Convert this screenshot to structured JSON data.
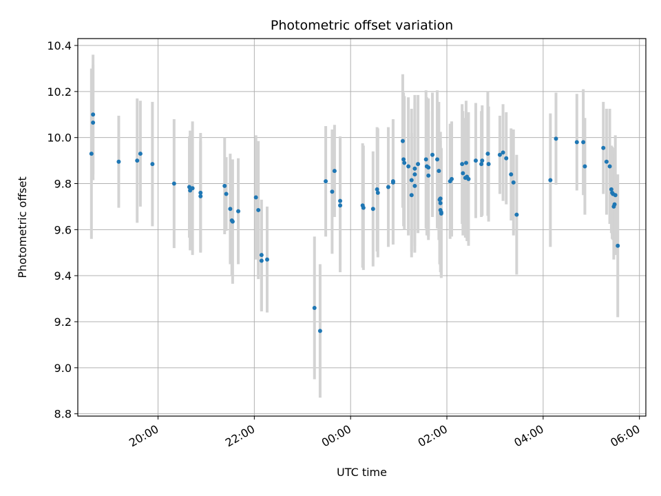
{
  "chart_data": {
    "type": "scatter",
    "title": "Photometric offset variation",
    "xlabel": "UTC time",
    "ylabel": "Photometric offset",
    "x_unit": "UTC time (start 18:00)",
    "xlim": [
      "18:20",
      "06:08"
    ],
    "ylim": [
      8.79,
      10.43
    ],
    "x_ticks": [
      "20:00",
      "22:00",
      "00:00",
      "02:00",
      "04:00",
      "06:00"
    ],
    "y_ticks": [
      "8.8",
      "9.0",
      "9.2",
      "9.4",
      "9.6",
      "9.8",
      "10.0",
      "10.2",
      "10.4"
    ],
    "grid": true,
    "colors": {
      "point": "#1f77b4",
      "errorbar": "#d3d3d3",
      "grid": "#b0b0b0"
    },
    "series": [
      {
        "points": [
          {
            "t": "18:37",
            "y": 9.93,
            "err": 0.37
          },
          {
            "t": "18:39",
            "y": 10.1,
            "err": 0.26
          },
          {
            "t": "18:39",
            "y": 10.065,
            "err": 0.25
          },
          {
            "t": "19:11",
            "y": 9.895,
            "err": 0.2
          },
          {
            "t": "19:34",
            "y": 9.9,
            "err": 0.27
          },
          {
            "t": "19:38",
            "y": 9.93,
            "err": 0.23
          },
          {
            "t": "19:53",
            "y": 9.885,
            "err": 0.27
          },
          {
            "t": "20:20",
            "y": 9.8,
            "err": 0.28
          },
          {
            "t": "20:39",
            "y": 9.785,
            "err": 0.22
          },
          {
            "t": "20:40",
            "y": 9.77,
            "err": 0.26
          },
          {
            "t": "20:43",
            "y": 9.78,
            "err": 0.29
          },
          {
            "t": "20:53",
            "y": 9.76,
            "err": 0.26
          },
          {
            "t": "20:53",
            "y": 9.745,
            "err": 0.24
          },
          {
            "t": "21:23",
            "y": 9.79,
            "err": 0.21
          },
          {
            "t": "21:25",
            "y": 9.755,
            "err": 0.16
          },
          {
            "t": "21:30",
            "y": 9.69,
            "err": 0.24
          },
          {
            "t": "21:32",
            "y": 9.64,
            "err": 0.24
          },
          {
            "t": "21:33",
            "y": 9.635,
            "err": 0.27
          },
          {
            "t": "21:40",
            "y": 9.68,
            "err": 0.23
          },
          {
            "t": "22:02",
            "y": 9.74,
            "err": 0.27
          },
          {
            "t": "22:05",
            "y": 9.685,
            "err": 0.3
          },
          {
            "t": "22:09",
            "y": 9.49,
            "err": 0.24
          },
          {
            "t": "22:09",
            "y": 9.465,
            "err": 0.22
          },
          {
            "t": "22:16",
            "y": 9.47,
            "err": 0.23
          },
          {
            "t": "23:15",
            "y": 9.26,
            "err": 0.31
          },
          {
            "t": "23:22",
            "y": 9.16,
            "err": 0.29
          },
          {
            "t": "23:29",
            "y": 9.81,
            "err": 0.24
          },
          {
            "t": "23:37",
            "y": 9.765,
            "err": 0.27
          },
          {
            "t": "23:40",
            "y": 9.855,
            "err": 0.2
          },
          {
            "t": "23:47",
            "y": 9.725,
            "err": 0.28
          },
          {
            "t": "23:47",
            "y": 9.705,
            "err": 0.29
          },
          {
            "t": "00:15",
            "y": 9.705,
            "err": 0.27
          },
          {
            "t": "00:16",
            "y": 9.695,
            "err": 0.27
          },
          {
            "t": "00:28",
            "y": 9.69,
            "err": 0.25
          },
          {
            "t": "00:33",
            "y": 9.775,
            "err": 0.27
          },
          {
            "t": "00:34",
            "y": 9.76,
            "err": 0.28
          },
          {
            "t": "00:47",
            "y": 9.785,
            "err": 0.26
          },
          {
            "t": "00:53",
            "y": 9.805,
            "err": 0.27
          },
          {
            "t": "00:53",
            "y": 9.81,
            "err": 0.27
          },
          {
            "t": "01:05",
            "y": 9.985,
            "err": 0.29
          },
          {
            "t": "01:06",
            "y": 9.905,
            "err": 0.29
          },
          {
            "t": "01:07",
            "y": 9.89,
            "err": 0.29
          },
          {
            "t": "01:12",
            "y": 9.875,
            "err": 0.3
          },
          {
            "t": "01:16",
            "y": 9.815,
            "err": 0.31
          },
          {
            "t": "01:16",
            "y": 9.75,
            "err": 0.27
          },
          {
            "t": "01:20",
            "y": 9.865,
            "err": 0.32
          },
          {
            "t": "01:20",
            "y": 9.84,
            "err": 0.31
          },
          {
            "t": "01:20",
            "y": 9.79,
            "err": 0.29
          },
          {
            "t": "01:24",
            "y": 9.885,
            "err": 0.3
          },
          {
            "t": "01:34",
            "y": 9.905,
            "err": 0.3
          },
          {
            "t": "01:35",
            "y": 9.875,
            "err": 0.3
          },
          {
            "t": "01:37",
            "y": 9.87,
            "err": 0.3
          },
          {
            "t": "01:37",
            "y": 9.835,
            "err": 0.28
          },
          {
            "t": "01:42",
            "y": 9.925,
            "err": 0.27
          },
          {
            "t": "01:48",
            "y": 9.905,
            "err": 0.3
          },
          {
            "t": "01:50",
            "y": 9.855,
            "err": 0.3
          },
          {
            "t": "01:51",
            "y": 9.73,
            "err": 0.28
          },
          {
            "t": "01:52",
            "y": 9.735,
            "err": 0.29
          },
          {
            "t": "01:52",
            "y": 9.715,
            "err": 0.27
          },
          {
            "t": "01:52",
            "y": 9.685,
            "err": 0.27
          },
          {
            "t": "01:53",
            "y": 9.67,
            "err": 0.28
          },
          {
            "t": "01:53",
            "y": 9.675,
            "err": 0.28
          },
          {
            "t": "02:04",
            "y": 9.81,
            "err": 0.25
          },
          {
            "t": "02:06",
            "y": 9.82,
            "err": 0.25
          },
          {
            "t": "02:19",
            "y": 9.885,
            "err": 0.26
          },
          {
            "t": "02:20",
            "y": 9.845,
            "err": 0.27
          },
          {
            "t": "02:23",
            "y": 9.825,
            "err": 0.26
          },
          {
            "t": "02:24",
            "y": 9.89,
            "err": 0.27
          },
          {
            "t": "02:25",
            "y": 9.83,
            "err": 0.28
          },
          {
            "t": "02:27",
            "y": 9.82,
            "err": 0.29
          },
          {
            "t": "02:36",
            "y": 9.9,
            "err": 0.25
          },
          {
            "t": "02:43",
            "y": 9.885,
            "err": 0.23
          },
          {
            "t": "02:44",
            "y": 9.9,
            "err": 0.24
          },
          {
            "t": "02:51",
            "y": 9.93,
            "err": 0.27
          },
          {
            "t": "02:52",
            "y": 9.885,
            "err": 0.25
          },
          {
            "t": "03:06",
            "y": 9.925,
            "err": 0.17
          },
          {
            "t": "03:10",
            "y": 9.935,
            "err": 0.21
          },
          {
            "t": "03:14",
            "y": 9.91,
            "err": 0.2
          },
          {
            "t": "03:20",
            "y": 9.84,
            "err": 0.2
          },
          {
            "t": "03:23",
            "y": 9.805,
            "err": 0.23
          },
          {
            "t": "03:27",
            "y": 9.665,
            "err": 0.26
          },
          {
            "t": "04:09",
            "y": 9.815,
            "err": 0.29
          },
          {
            "t": "04:16",
            "y": 9.995,
            "err": 0.2
          },
          {
            "t": "04:42",
            "y": 9.98,
            "err": 0.21
          },
          {
            "t": "04:50",
            "y": 9.98,
            "err": 0.23
          },
          {
            "t": "04:52",
            "y": 9.875,
            "err": 0.21
          },
          {
            "t": "05:15",
            "y": 9.955,
            "err": 0.2
          },
          {
            "t": "05:19",
            "y": 9.895,
            "err": 0.23
          },
          {
            "t": "05:23",
            "y": 9.875,
            "err": 0.25
          },
          {
            "t": "05:25",
            "y": 9.775,
            "err": 0.19
          },
          {
            "t": "05:26",
            "y": 9.76,
            "err": 0.2
          },
          {
            "t": "05:27",
            "y": 9.755,
            "err": 0.2
          },
          {
            "t": "05:28",
            "y": 9.7,
            "err": 0.23
          },
          {
            "t": "05:29",
            "y": 9.71,
            "err": 0.22
          },
          {
            "t": "05:30",
            "y": 9.75,
            "err": 0.26
          },
          {
            "t": "05:33",
            "y": 9.53,
            "err": 0.31
          }
        ]
      }
    ]
  }
}
